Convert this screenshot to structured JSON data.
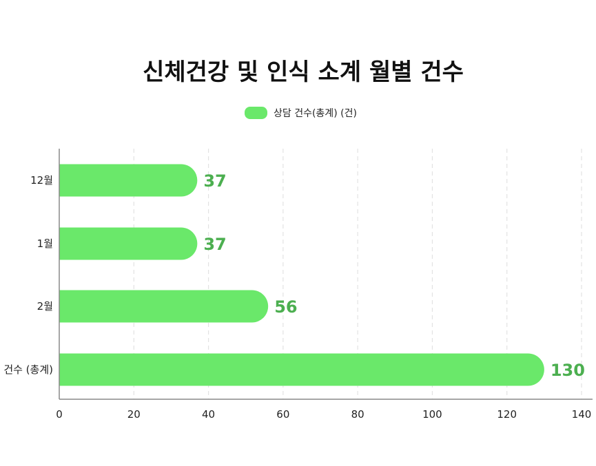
{
  "chart_data": {
    "type": "bar",
    "orientation": "horizontal",
    "title": "신체건강 및 인식 소계 월별 건수",
    "categories": [
      "12월",
      "1월",
      "2월",
      "건수 (총계)"
    ],
    "series": [
      {
        "name": "상담 건수(총계) (건)",
        "values": [
          37,
          37,
          56,
          130
        ]
      }
    ],
    "data_labels": [
      "37",
      "37",
      "56",
      "130"
    ],
    "xlim": [
      0,
      140
    ],
    "x_ticks": [
      0,
      20,
      40,
      60,
      80,
      100,
      120,
      140
    ],
    "x_tick_labels": [
      "0",
      "20",
      "40",
      "60",
      "80",
      "100",
      "120",
      "140"
    ],
    "grid": "vertical-dashed",
    "legend_position": "top-center",
    "colors": {
      "bar": "#6AE86A",
      "value_label": "#4CAF50",
      "grid": "#E2E2E2",
      "axis": "#888888"
    }
  }
}
